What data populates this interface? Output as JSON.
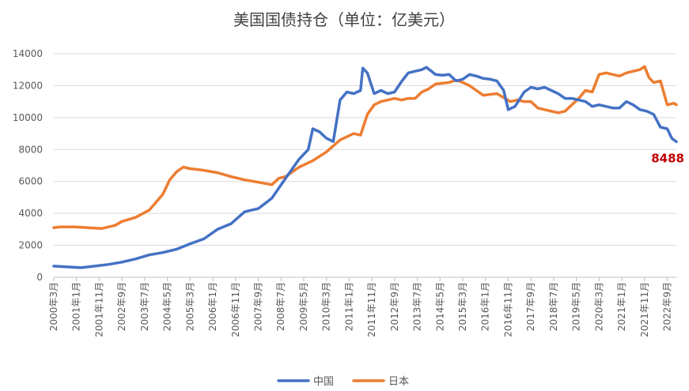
{
  "chart_data": {
    "type": "line",
    "title": "美国国债持仓（单位：亿美元）",
    "xlabel": "",
    "ylabel": "",
    "ylim": [
      0,
      14000
    ],
    "yticks": [
      0,
      2000,
      4000,
      6000,
      8000,
      10000,
      12000,
      14000
    ],
    "ytick_labels": [
      "0",
      "2000",
      "4000",
      "6000",
      "8000",
      "10000",
      "12000",
      "14000"
    ],
    "x_range": [
      "2000-03",
      "2023-01"
    ],
    "xtick_labels": [
      "2000年3月",
      "2001年1月",
      "2001年11月",
      "2002年9月",
      "2003年7月",
      "2004年5月",
      "2005年3月",
      "2006年1月",
      "2006年11月",
      "2007年9月",
      "2008年7月",
      "2009年5月",
      "2010年3月",
      "2011年1月",
      "2011年11月",
      "2012年9月",
      "2013年7月",
      "2014年5月",
      "2015年3月",
      "2016年1月",
      "2016年11月",
      "2017年9月",
      "2018年7月",
      "2019年5月",
      "2020年3月",
      "2021年1月",
      "2021年11月",
      "2022年9月"
    ],
    "grid": "horizontal",
    "legend_position": "bottom",
    "annotation": {
      "text": "8488",
      "color": "#c00000"
    },
    "series": [
      {
        "name": "中国",
        "color": "#4472c4",
        "points": [
          [
            "2000-03",
            700
          ],
          [
            "2000-09",
            650
          ],
          [
            "2001-03",
            600
          ],
          [
            "2001-09",
            700
          ],
          [
            "2002-03",
            800
          ],
          [
            "2002-09",
            950
          ],
          [
            "2003-03",
            1150
          ],
          [
            "2003-09",
            1400
          ],
          [
            "2004-03",
            1550
          ],
          [
            "2004-09",
            1750
          ],
          [
            "2005-03",
            2100
          ],
          [
            "2005-09",
            2400
          ],
          [
            "2006-03",
            3000
          ],
          [
            "2006-09",
            3350
          ],
          [
            "2007-03",
            4100
          ],
          [
            "2007-09",
            4300
          ],
          [
            "2008-03",
            4950
          ],
          [
            "2008-09",
            6200
          ],
          [
            "2009-03",
            7400
          ],
          [
            "2009-07",
            8000
          ],
          [
            "2009-09",
            9300
          ],
          [
            "2009-12",
            9100
          ],
          [
            "2010-03",
            8700
          ],
          [
            "2010-06",
            8500
          ],
          [
            "2010-09",
            11100
          ],
          [
            "2010-12",
            11600
          ],
          [
            "2011-03",
            11500
          ],
          [
            "2011-06",
            11700
          ],
          [
            "2011-07",
            13100
          ],
          [
            "2011-09",
            12800
          ],
          [
            "2011-12",
            11500
          ],
          [
            "2012-03",
            11700
          ],
          [
            "2012-06",
            11500
          ],
          [
            "2012-09",
            11600
          ],
          [
            "2012-12",
            12250
          ],
          [
            "2013-03",
            12800
          ],
          [
            "2013-06",
            12900
          ],
          [
            "2013-09",
            13000
          ],
          [
            "2013-11",
            13150
          ],
          [
            "2014-03",
            12700
          ],
          [
            "2014-06",
            12650
          ],
          [
            "2014-09",
            12700
          ],
          [
            "2014-12",
            12300
          ],
          [
            "2015-03",
            12400
          ],
          [
            "2015-06",
            12700
          ],
          [
            "2015-09",
            12600
          ],
          [
            "2015-12",
            12450
          ],
          [
            "2016-03",
            12400
          ],
          [
            "2016-06",
            12300
          ],
          [
            "2016-09",
            11700
          ],
          [
            "2016-11",
            10500
          ],
          [
            "2017-02",
            10700
          ],
          [
            "2017-06",
            11600
          ],
          [
            "2017-09",
            11900
          ],
          [
            "2017-12",
            11800
          ],
          [
            "2018-03",
            11900
          ],
          [
            "2018-06",
            11700
          ],
          [
            "2018-09",
            11500
          ],
          [
            "2018-12",
            11200
          ],
          [
            "2019-03",
            11200
          ],
          [
            "2019-06",
            11100
          ],
          [
            "2019-09",
            11000
          ],
          [
            "2019-12",
            10700
          ],
          [
            "2020-03",
            10800
          ],
          [
            "2020-06",
            10700
          ],
          [
            "2020-09",
            10600
          ],
          [
            "2020-12",
            10600
          ],
          [
            "2021-03",
            11000
          ],
          [
            "2021-06",
            10800
          ],
          [
            "2021-09",
            10500
          ],
          [
            "2021-12",
            10400
          ],
          [
            "2022-03",
            10200
          ],
          [
            "2022-06",
            9400
          ],
          [
            "2022-09",
            9300
          ],
          [
            "2022-11",
            8700
          ],
          [
            "2023-01",
            8488
          ]
        ]
      },
      {
        "name": "日本",
        "color": "#ed7d31",
        "points": [
          [
            "2000-03",
            3100
          ],
          [
            "2000-06",
            3150
          ],
          [
            "2000-12",
            3150
          ],
          [
            "2001-06",
            3100
          ],
          [
            "2001-12",
            3050
          ],
          [
            "2002-06",
            3250
          ],
          [
            "2002-09",
            3500
          ],
          [
            "2003-03",
            3750
          ],
          [
            "2003-09",
            4200
          ],
          [
            "2004-03",
            5200
          ],
          [
            "2004-06",
            6100
          ],
          [
            "2004-09",
            6600
          ],
          [
            "2004-12",
            6900
          ],
          [
            "2005-03",
            6800
          ],
          [
            "2005-09",
            6700
          ],
          [
            "2006-03",
            6550
          ],
          [
            "2006-09",
            6300
          ],
          [
            "2007-03",
            6100
          ],
          [
            "2007-09",
            5950
          ],
          [
            "2008-03",
            5800
          ],
          [
            "2008-06",
            6200
          ],
          [
            "2008-09",
            6300
          ],
          [
            "2009-03",
            6900
          ],
          [
            "2009-09",
            7300
          ],
          [
            "2010-03",
            7850
          ],
          [
            "2010-09",
            8600
          ],
          [
            "2011-03",
            9000
          ],
          [
            "2011-06",
            8900
          ],
          [
            "2011-09",
            10200
          ],
          [
            "2011-12",
            10800
          ],
          [
            "2012-03",
            11000
          ],
          [
            "2012-09",
            11200
          ],
          [
            "2012-12",
            11100
          ],
          [
            "2013-03",
            11200
          ],
          [
            "2013-06",
            11200
          ],
          [
            "2013-09",
            11600
          ],
          [
            "2013-12",
            11800
          ],
          [
            "2014-03",
            12100
          ],
          [
            "2014-09",
            12200
          ],
          [
            "2014-12",
            12350
          ],
          [
            "2015-03",
            12200
          ],
          [
            "2015-06",
            12000
          ],
          [
            "2015-09",
            11700
          ],
          [
            "2015-12",
            11400
          ],
          [
            "2016-06",
            11500
          ],
          [
            "2016-12",
            11000
          ],
          [
            "2017-03",
            11100
          ],
          [
            "2017-06",
            11000
          ],
          [
            "2017-09",
            11000
          ],
          [
            "2017-12",
            10600
          ],
          [
            "2018-03",
            10500
          ],
          [
            "2018-06",
            10400
          ],
          [
            "2018-09",
            10300
          ],
          [
            "2018-12",
            10400
          ],
          [
            "2019-03",
            10800
          ],
          [
            "2019-06",
            11200
          ],
          [
            "2019-09",
            11700
          ],
          [
            "2019-12",
            11600
          ],
          [
            "2020-03",
            12700
          ],
          [
            "2020-06",
            12800
          ],
          [
            "2020-09",
            12700
          ],
          [
            "2020-12",
            12600
          ],
          [
            "2021-03",
            12800
          ],
          [
            "2021-06",
            12900
          ],
          [
            "2021-09",
            13000
          ],
          [
            "2021-11",
            13200
          ],
          [
            "2022-01",
            12500
          ],
          [
            "2022-03",
            12200
          ],
          [
            "2022-06",
            12300
          ],
          [
            "2022-09",
            10800
          ],
          [
            "2022-12",
            10900
          ],
          [
            "2023-01",
            10800
          ]
        ]
      }
    ]
  }
}
